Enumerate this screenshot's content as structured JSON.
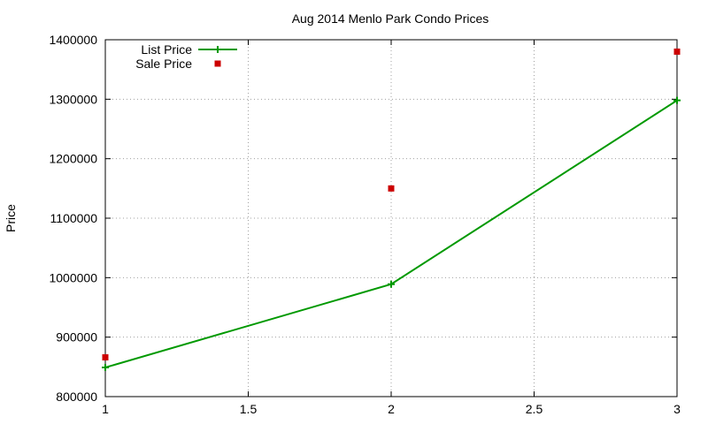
{
  "chart_data": {
    "type": "line",
    "title": "Aug 2014 Menlo Park Condo Prices",
    "xlabel": "",
    "ylabel": "Price",
    "xlim": [
      1,
      3
    ],
    "ylim": [
      800000,
      1400000
    ],
    "xticks": [
      1,
      1.5,
      2,
      2.5,
      3
    ],
    "xtick_labels": [
      "1",
      "1.5",
      "2",
      "2.5",
      "3"
    ],
    "yticks": [
      800000,
      900000,
      1000000,
      1100000,
      1200000,
      1300000,
      1400000
    ],
    "ytick_labels": [
      "800000",
      "900000",
      "1000000",
      "1100000",
      "1200000",
      "1300000",
      "1400000"
    ],
    "grid": true,
    "legend_position": "top-left",
    "series": [
      {
        "name": "List Price",
        "style": "linespoints",
        "color": "#009900",
        "x": [
          1,
          2,
          3
        ],
        "y": [
          849000,
          989000,
          1298000
        ]
      },
      {
        "name": "Sale Price",
        "style": "points",
        "color": "#cc0000",
        "x": [
          1,
          2,
          3
        ],
        "y": [
          866000,
          1150000,
          1380000
        ]
      }
    ]
  }
}
